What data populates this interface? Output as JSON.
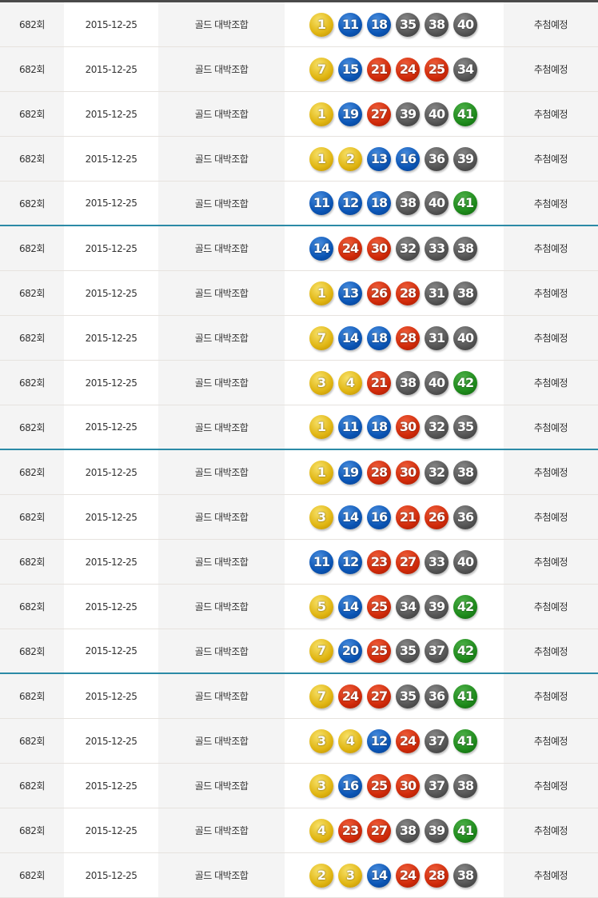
{
  "ball_colors": {
    "1-10": "#e0b512",
    "11-20": "#0b55b5",
    "21-30": "#d02a0a",
    "31-40": "#555555",
    "41-45": "#1e8a1b"
  },
  "group_separator_color": "#2b8aa6",
  "rows": [
    {
      "round": "682회",
      "date": "2015-12-25",
      "type": "골드 대박조합",
      "numbers": [
        1,
        11,
        18,
        35,
        38,
        40
      ],
      "status": "추첨예정"
    },
    {
      "round": "682회",
      "date": "2015-12-25",
      "type": "골드 대박조합",
      "numbers": [
        7,
        15,
        21,
        24,
        25,
        34
      ],
      "status": "추첨예정"
    },
    {
      "round": "682회",
      "date": "2015-12-25",
      "type": "골드 대박조합",
      "numbers": [
        1,
        19,
        27,
        39,
        40,
        41
      ],
      "status": "추첨예정"
    },
    {
      "round": "682회",
      "date": "2015-12-25",
      "type": "골드 대박조합",
      "numbers": [
        1,
        2,
        13,
        16,
        36,
        39
      ],
      "status": "추첨예정"
    },
    {
      "round": "682회",
      "date": "2015-12-25",
      "type": "골드 대박조합",
      "numbers": [
        11,
        12,
        18,
        38,
        40,
        41
      ],
      "status": "추첨예정"
    },
    {
      "round": "682회",
      "date": "2015-12-25",
      "type": "골드 대박조합",
      "numbers": [
        14,
        24,
        30,
        32,
        33,
        38
      ],
      "status": "추첨예정"
    },
    {
      "round": "682회",
      "date": "2015-12-25",
      "type": "골드 대박조합",
      "numbers": [
        1,
        13,
        26,
        28,
        31,
        38
      ],
      "status": "추첨예정"
    },
    {
      "round": "682회",
      "date": "2015-12-25",
      "type": "골드 대박조합",
      "numbers": [
        7,
        14,
        18,
        28,
        31,
        40
      ],
      "status": "추첨예정"
    },
    {
      "round": "682회",
      "date": "2015-12-25",
      "type": "골드 대박조합",
      "numbers": [
        3,
        4,
        21,
        38,
        40,
        42
      ],
      "status": "추첨예정"
    },
    {
      "round": "682회",
      "date": "2015-12-25",
      "type": "골드 대박조합",
      "numbers": [
        1,
        11,
        18,
        30,
        32,
        35
      ],
      "status": "추첨예정"
    },
    {
      "round": "682회",
      "date": "2015-12-25",
      "type": "골드 대박조합",
      "numbers": [
        1,
        19,
        28,
        30,
        32,
        38
      ],
      "status": "추첨예정"
    },
    {
      "round": "682회",
      "date": "2015-12-25",
      "type": "골드 대박조합",
      "numbers": [
        3,
        14,
        16,
        21,
        26,
        36
      ],
      "status": "추첨예정"
    },
    {
      "round": "682회",
      "date": "2015-12-25",
      "type": "골드 대박조합",
      "numbers": [
        11,
        12,
        23,
        27,
        33,
        40
      ],
      "status": "추첨예정"
    },
    {
      "round": "682회",
      "date": "2015-12-25",
      "type": "골드 대박조합",
      "numbers": [
        5,
        14,
        25,
        34,
        39,
        42
      ],
      "status": "추첨예정"
    },
    {
      "round": "682회",
      "date": "2015-12-25",
      "type": "골드 대박조합",
      "numbers": [
        7,
        20,
        25,
        35,
        37,
        42
      ],
      "status": "추첨예정"
    },
    {
      "round": "682회",
      "date": "2015-12-25",
      "type": "골드 대박조합",
      "numbers": [
        7,
        24,
        27,
        35,
        36,
        41
      ],
      "status": "추첨예정"
    },
    {
      "round": "682회",
      "date": "2015-12-25",
      "type": "골드 대박조합",
      "numbers": [
        3,
        4,
        12,
        24,
        37,
        41
      ],
      "status": "추첨예정"
    },
    {
      "round": "682회",
      "date": "2015-12-25",
      "type": "골드 대박조합",
      "numbers": [
        3,
        16,
        25,
        30,
        37,
        38
      ],
      "status": "추첨예정"
    },
    {
      "round": "682회",
      "date": "2015-12-25",
      "type": "골드 대박조합",
      "numbers": [
        4,
        23,
        27,
        38,
        39,
        41
      ],
      "status": "추첨예정"
    },
    {
      "round": "682회",
      "date": "2015-12-25",
      "type": "골드 대박조합",
      "numbers": [
        2,
        3,
        14,
        24,
        28,
        38
      ],
      "status": "추첨예정"
    }
  ]
}
